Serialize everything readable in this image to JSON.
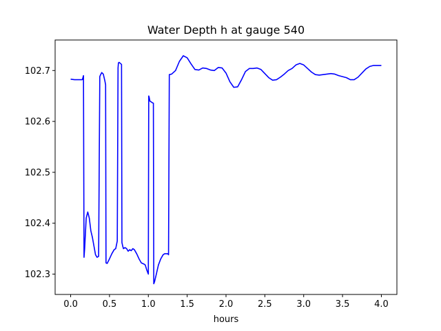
{
  "chart_data": {
    "type": "line",
    "title": "Water Depth h at gauge 540",
    "xlabel": "hours",
    "ylabel": "",
    "xlim": [
      -0.2,
      4.2
    ],
    "ylim": [
      102.26,
      102.76
    ],
    "xticks": [
      0.0,
      0.5,
      1.0,
      1.5,
      2.0,
      2.5,
      3.0,
      3.5,
      4.0
    ],
    "xtick_labels": [
      "0.0",
      "0.5",
      "1.0",
      "1.5",
      "2.0",
      "2.5",
      "3.0",
      "3.5",
      "4.0"
    ],
    "yticks": [
      102.3,
      102.4,
      102.5,
      102.6,
      102.7
    ],
    "ytick_labels": [
      "102.3",
      "102.4",
      "102.5",
      "102.6",
      "102.7"
    ],
    "grid": false,
    "line_color": "#0000ff",
    "series": [
      {
        "x": [
          0.0,
          0.05,
          0.1,
          0.15,
          0.165,
          0.172,
          0.18,
          0.2,
          0.22,
          0.24,
          0.26,
          0.28,
          0.3,
          0.32,
          0.34,
          0.36,
          0.375,
          0.38,
          0.4,
          0.42,
          0.44,
          0.45,
          0.455,
          0.47,
          0.5,
          0.53,
          0.56,
          0.58,
          0.6,
          0.61,
          0.615,
          0.625,
          0.64,
          0.655,
          0.66,
          0.67,
          0.68,
          0.7,
          0.72,
          0.74,
          0.76,
          0.78,
          0.8,
          0.82,
          0.85,
          0.88,
          0.91,
          0.94,
          0.96,
          0.98,
          1.0,
          1.005,
          1.01,
          1.02,
          1.04,
          1.06,
          1.065,
          1.07,
          1.08,
          1.1,
          1.13,
          1.16,
          1.19,
          1.21,
          1.23,
          1.25,
          1.26,
          1.27,
          1.3,
          1.35,
          1.4,
          1.45,
          1.5,
          1.55,
          1.6,
          1.65,
          1.7,
          1.75,
          1.8,
          1.85,
          1.9,
          1.95,
          2.0,
          2.05,
          2.1,
          2.15,
          2.2,
          2.25,
          2.3,
          2.35,
          2.4,
          2.45,
          2.5,
          2.55,
          2.6,
          2.65,
          2.7,
          2.75,
          2.8,
          2.85,
          2.9,
          2.95,
          3.0,
          3.05,
          3.1,
          3.15,
          3.2,
          3.25,
          3.3,
          3.35,
          3.4,
          3.45,
          3.5,
          3.55,
          3.6,
          3.65,
          3.7,
          3.75,
          3.8,
          3.85,
          3.9,
          3.95,
          4.0
        ],
        "y": [
          102.683,
          102.682,
          102.682,
          102.682,
          102.69,
          102.333,
          102.35,
          102.41,
          102.422,
          102.41,
          102.385,
          102.372,
          102.355,
          102.338,
          102.333,
          102.335,
          102.688,
          102.69,
          102.696,
          102.693,
          102.68,
          102.672,
          102.322,
          102.321,
          102.33,
          102.34,
          102.348,
          102.35,
          102.365,
          102.705,
          102.715,
          102.716,
          102.714,
          102.712,
          102.362,
          102.355,
          102.35,
          102.352,
          102.35,
          102.345,
          102.348,
          102.346,
          102.35,
          102.348,
          102.34,
          102.33,
          102.322,
          102.32,
          102.318,
          102.308,
          102.3,
          102.65,
          102.648,
          102.64,
          102.638,
          102.636,
          102.636,
          102.281,
          102.285,
          102.298,
          102.318,
          102.33,
          102.338,
          102.34,
          102.34,
          102.34,
          102.338,
          102.692,
          102.693,
          102.7,
          102.718,
          102.729,
          102.725,
          102.713,
          102.702,
          102.701,
          102.705,
          102.704,
          102.701,
          102.7,
          102.706,
          102.705,
          102.695,
          102.678,
          102.667,
          102.668,
          102.682,
          102.698,
          102.704,
          102.704,
          102.705,
          102.702,
          102.694,
          102.686,
          102.681,
          102.682,
          102.687,
          102.693,
          102.7,
          102.704,
          102.711,
          102.714,
          102.711,
          102.704,
          102.697,
          102.692,
          102.691,
          102.692,
          102.693,
          102.694,
          102.693,
          102.69,
          102.688,
          102.686,
          102.682,
          102.682,
          102.687,
          102.695,
          102.703,
          102.708,
          102.71,
          102.71,
          102.71
        ]
      }
    ]
  }
}
